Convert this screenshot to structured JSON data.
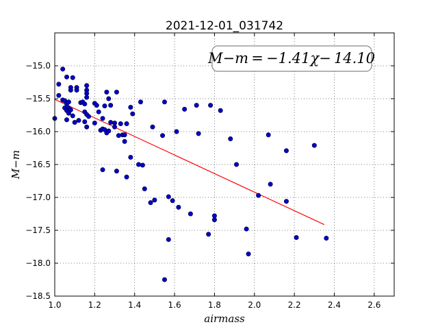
{
  "chart_data": {
    "type": "scatter",
    "title": "2021-12-01_031742",
    "xlabel": "airmass",
    "ylabel": "M−m",
    "xlim": [
      1.0,
      2.7
    ],
    "ylim": [
      -18.5,
      -14.5
    ],
    "x_ticks": [
      "1.0",
      "1.2",
      "1.4",
      "1.6",
      "1.8",
      "2.0",
      "2.2",
      "2.4",
      "2.6"
    ],
    "y_ticks": [
      "−15.0",
      "−15.5",
      "−16.0",
      "−16.5",
      "−17.0",
      "−17.5",
      "−18.0",
      "−18.5"
    ],
    "grid": true,
    "annotation": "M−m = −1.41χ− 14.10",
    "fit": {
      "slope": -1.41,
      "intercept": -14.1,
      "x_range": [
        1.0,
        2.35
      ],
      "color": "#ff0000"
    },
    "marker_color": "#0000cc",
    "points": [
      [
        1.0,
        -15.8
      ],
      [
        1.02,
        -15.28
      ],
      [
        1.02,
        -15.45
      ],
      [
        1.04,
        -15.05
      ],
      [
        1.04,
        -15.52
      ],
      [
        1.05,
        -15.53
      ],
      [
        1.05,
        -15.64
      ],
      [
        1.06,
        -15.17
      ],
      [
        1.06,
        -15.58
      ],
      [
        1.06,
        -15.68
      ],
      [
        1.06,
        -15.82
      ],
      [
        1.07,
        -15.55
      ],
      [
        1.07,
        -15.64
      ],
      [
        1.07,
        -15.72
      ],
      [
        1.08,
        -15.33
      ],
      [
        1.08,
        -15.37
      ],
      [
        1.08,
        -15.67
      ],
      [
        1.09,
        -15.18
      ],
      [
        1.09,
        -15.76
      ],
      [
        1.1,
        -15.86
      ],
      [
        1.11,
        -15.33
      ],
      [
        1.11,
        -15.37
      ],
      [
        1.12,
        -15.83
      ],
      [
        1.13,
        -15.56
      ],
      [
        1.14,
        -15.55
      ],
      [
        1.15,
        -15.85
      ],
      [
        1.15,
        -15.7
      ],
      [
        1.15,
        -15.58
      ],
      [
        1.16,
        -15.3
      ],
      [
        1.16,
        -15.37
      ],
      [
        1.16,
        -15.42
      ],
      [
        1.16,
        -15.48
      ],
      [
        1.16,
        -15.74
      ],
      [
        1.16,
        -15.93
      ],
      [
        1.17,
        -15.77
      ],
      [
        1.2,
        -15.57
      ],
      [
        1.2,
        -15.87
      ],
      [
        1.21,
        -15.6
      ],
      [
        1.22,
        -15.7
      ],
      [
        1.23,
        -15.98
      ],
      [
        1.24,
        -15.96
      ],
      [
        1.24,
        -16.58
      ],
      [
        1.24,
        -15.8
      ],
      [
        1.25,
        -15.97
      ],
      [
        1.25,
        -15.61
      ],
      [
        1.26,
        -15.4
      ],
      [
        1.26,
        -16.02
      ],
      [
        1.27,
        -15.5
      ],
      [
        1.27,
        -15.99
      ],
      [
        1.28,
        -15.6
      ],
      [
        1.28,
        -15.86
      ],
      [
        1.3,
        -15.87
      ],
      [
        1.3,
        -15.93
      ],
      [
        1.31,
        -15.4
      ],
      [
        1.31,
        -16.6
      ],
      [
        1.32,
        -16.06
      ],
      [
        1.33,
        -15.88
      ],
      [
        1.34,
        -16.05
      ],
      [
        1.35,
        -16.15
      ],
      [
        1.35,
        -16.05
      ],
      [
        1.36,
        -15.88
      ],
      [
        1.36,
        -16.69
      ],
      [
        1.38,
        -15.63
      ],
      [
        1.38,
        -16.39
      ],
      [
        1.39,
        -15.73
      ],
      [
        1.42,
        -16.5
      ],
      [
        1.43,
        -15.55
      ],
      [
        1.44,
        -16.51
      ],
      [
        1.45,
        -16.87
      ],
      [
        1.48,
        -17.08
      ],
      [
        1.49,
        -15.93
      ],
      [
        1.5,
        -17.04
      ],
      [
        1.54,
        -16.06
      ],
      [
        1.55,
        -15.55
      ],
      [
        1.55,
        -18.25
      ],
      [
        1.57,
        -16.99
      ],
      [
        1.57,
        -17.64
      ],
      [
        1.59,
        -17.05
      ],
      [
        1.61,
        -16.0
      ],
      [
        1.62,
        -17.15
      ],
      [
        1.65,
        -15.66
      ],
      [
        1.68,
        -17.25
      ],
      [
        1.71,
        -15.6
      ],
      [
        1.72,
        -16.03
      ],
      [
        1.77,
        -17.56
      ],
      [
        1.78,
        -15.6
      ],
      [
        1.8,
        -17.34
      ],
      [
        1.8,
        -17.28
      ],
      [
        1.83,
        -15.68
      ],
      [
        1.88,
        -16.11
      ],
      [
        1.91,
        -16.5
      ],
      [
        1.96,
        -17.48
      ],
      [
        1.97,
        -17.86
      ],
      [
        2.02,
        -16.97
      ],
      [
        2.07,
        -16.05
      ],
      [
        2.08,
        -16.8
      ],
      [
        2.16,
        -16.29
      ],
      [
        2.16,
        -17.06
      ],
      [
        2.21,
        -17.61
      ],
      [
        2.3,
        -16.21
      ],
      [
        2.36,
        -17.62
      ]
    ]
  }
}
